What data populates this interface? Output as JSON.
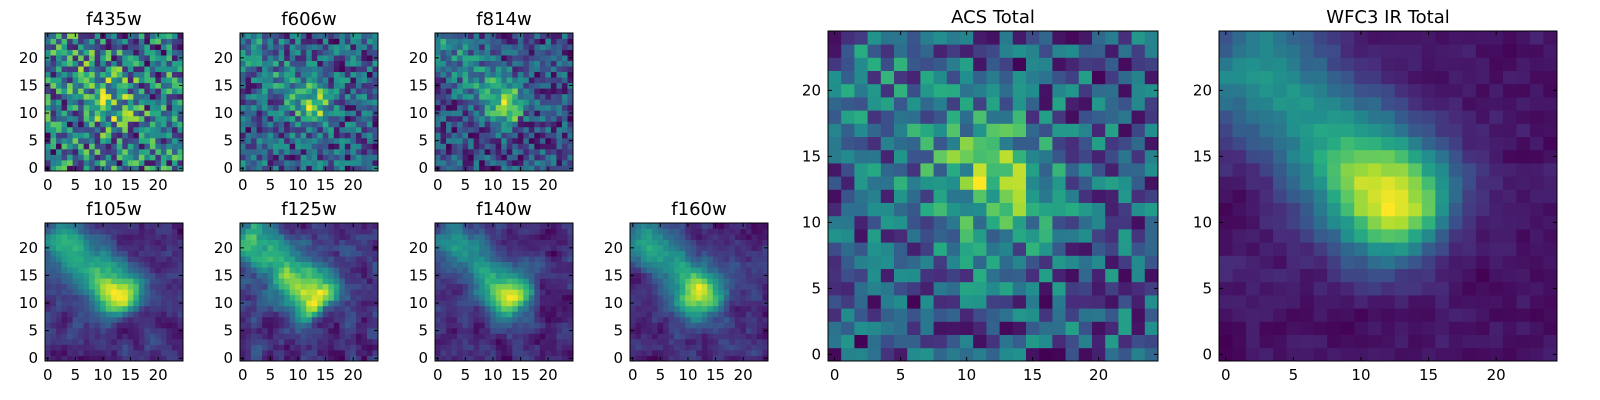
{
  "chart_data": [
    {
      "type": "heatmap",
      "title": "f435w",
      "xticks": [
        0,
        5,
        10,
        15,
        20
      ],
      "yticks": [
        0,
        5,
        10,
        15,
        20
      ],
      "xlim": [
        0,
        25
      ],
      "ylim": [
        0,
        25
      ],
      "grid": false,
      "colormap": "viridis",
      "description": "noisy, faint blob near center"
    },
    {
      "type": "heatmap",
      "title": "f606w",
      "xticks": [
        0,
        5,
        10,
        15,
        20
      ],
      "yticks": [
        0,
        5,
        10,
        15,
        20
      ],
      "xlim": [
        0,
        25
      ],
      "ylim": [
        0,
        25
      ],
      "grid": false,
      "colormap": "viridis",
      "peak": [
        13,
        12
      ]
    },
    {
      "type": "heatmap",
      "title": "f814w",
      "xticks": [
        0,
        5,
        10,
        15,
        20
      ],
      "yticks": [
        0,
        5,
        10,
        15,
        20
      ],
      "xlim": [
        0,
        25
      ],
      "ylim": [
        0,
        25
      ],
      "grid": false,
      "colormap": "viridis",
      "peak": [
        12,
        12
      ]
    },
    {
      "type": "heatmap",
      "title": "f105w",
      "xticks": [
        0,
        5,
        10,
        15,
        20
      ],
      "yticks": [
        0,
        5,
        10,
        15,
        20
      ],
      "xlim": [
        0,
        25
      ],
      "ylim": [
        0,
        25
      ],
      "grid": false,
      "colormap": "viridis",
      "peak": [
        13,
        12
      ]
    },
    {
      "type": "heatmap",
      "title": "f125w",
      "xticks": [
        0,
        5,
        10,
        15,
        20
      ],
      "yticks": [
        0,
        5,
        10,
        15,
        20
      ],
      "xlim": [
        0,
        25
      ],
      "ylim": [
        0,
        25
      ],
      "grid": false,
      "colormap": "viridis",
      "peak": [
        13,
        12
      ]
    },
    {
      "type": "heatmap",
      "title": "f140w",
      "xticks": [
        0,
        5,
        10,
        15,
        20
      ],
      "yticks": [
        0,
        5,
        10,
        15,
        20
      ],
      "xlim": [
        0,
        25
      ],
      "ylim": [
        0,
        25
      ],
      "grid": false,
      "colormap": "viridis",
      "peak": [
        13,
        11
      ]
    },
    {
      "type": "heatmap",
      "title": "f160w",
      "xticks": [
        0,
        5,
        10,
        15,
        20
      ],
      "yticks": [
        0,
        5,
        10,
        15,
        20
      ],
      "xlim": [
        0,
        25
      ],
      "ylim": [
        0,
        25
      ],
      "grid": false,
      "colormap": "viridis",
      "peak": [
        12,
        12
      ]
    },
    {
      "type": "heatmap",
      "title": "ACS Total",
      "xticks": [
        0,
        5,
        10,
        15,
        20
      ],
      "yticks": [
        0,
        5,
        10,
        15,
        20
      ],
      "xlim": [
        0,
        25
      ],
      "ylim": [
        0,
        25
      ],
      "grid": false,
      "colormap": "viridis",
      "peak": [
        12,
        13
      ]
    },
    {
      "type": "heatmap",
      "title": "WFC3 IR Total",
      "xticks": [
        0,
        5,
        10,
        15,
        20
      ],
      "yticks": [
        0,
        5,
        10,
        15,
        20
      ],
      "xlim": [
        0,
        25
      ],
      "ylim": [
        0,
        25
      ],
      "grid": false,
      "colormap": "viridis",
      "peak": [
        12,
        12
      ]
    }
  ]
}
